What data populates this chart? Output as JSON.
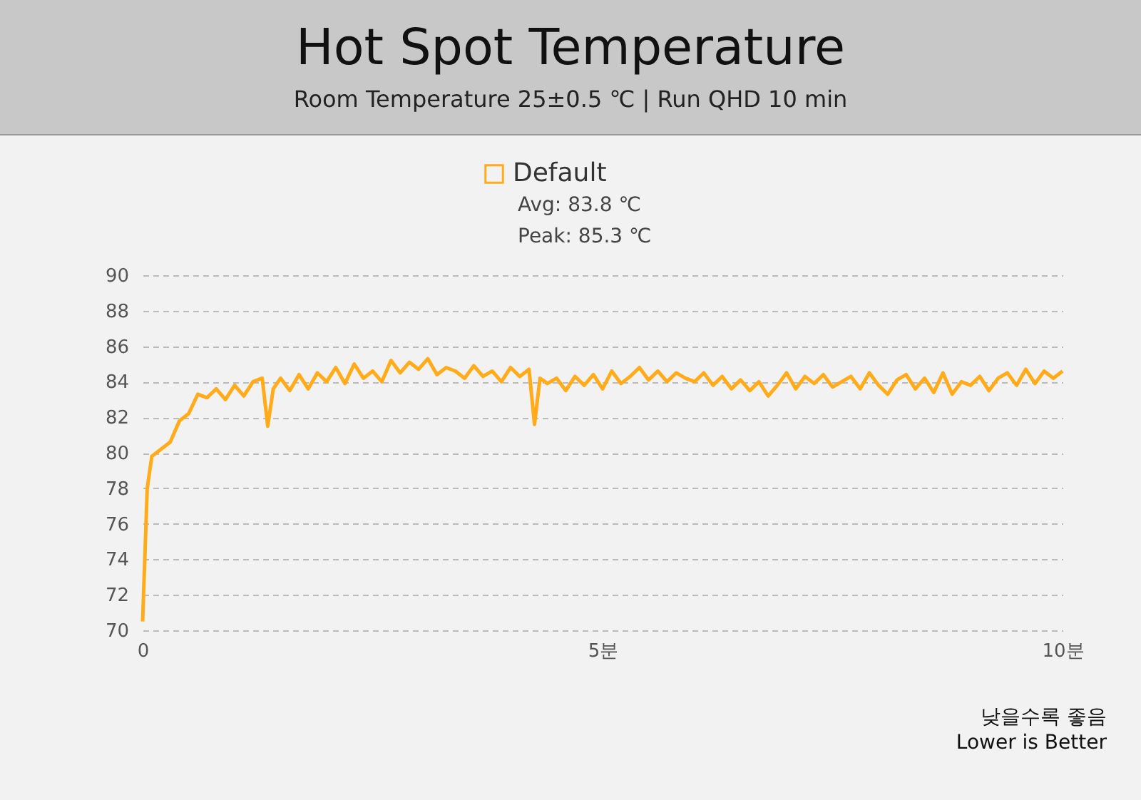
{
  "chart_data": {
    "type": "line",
    "title": "Hot Spot Temperature",
    "subtitle": "Room Temperature 25±0.5 ℃  |  Run QHD 10 min",
    "x": [
      0,
      0.05,
      0.1,
      0.2,
      0.3,
      0.4,
      0.5,
      0.6,
      0.7,
      0.8,
      0.9,
      1.0,
      1.1,
      1.2,
      1.3,
      1.36,
      1.42,
      1.5,
      1.6,
      1.7,
      1.8,
      1.9,
      2.0,
      2.1,
      2.2,
      2.3,
      2.4,
      2.5,
      2.6,
      2.7,
      2.8,
      2.9,
      3.0,
      3.1,
      3.2,
      3.3,
      3.4,
      3.5,
      3.6,
      3.7,
      3.8,
      3.9,
      4.0,
      4.1,
      4.2,
      4.26,
      4.32,
      4.4,
      4.5,
      4.6,
      4.7,
      4.8,
      4.9,
      5.0,
      5.1,
      5.2,
      5.3,
      5.4,
      5.5,
      5.6,
      5.7,
      5.8,
      5.9,
      6.0,
      6.1,
      6.2,
      6.3,
      6.4,
      6.5,
      6.6,
      6.7,
      6.8,
      6.9,
      7.0,
      7.1,
      7.2,
      7.3,
      7.4,
      7.5,
      7.6,
      7.7,
      7.8,
      7.9,
      8.0,
      8.1,
      8.2,
      8.3,
      8.4,
      8.5,
      8.6,
      8.7,
      8.8,
      8.9,
      9.0,
      9.1,
      9.2,
      9.3,
      9.4,
      9.5,
      9.6,
      9.7,
      9.8,
      9.9,
      10.0
    ],
    "series": [
      {
        "name": "Default",
        "color": "#ffab1a",
        "values": [
          70.5,
          78,
          79.8,
          80.2,
          80.6,
          81.8,
          82.2,
          83.3,
          83.1,
          83.6,
          83.0,
          83.8,
          83.2,
          84.0,
          84.2,
          81.5,
          83.6,
          84.2,
          83.5,
          84.4,
          83.6,
          84.5,
          84.0,
          84.8,
          83.9,
          85.0,
          84.2,
          84.6,
          84.0,
          85.2,
          84.5,
          85.1,
          84.7,
          85.3,
          84.4,
          84.8,
          84.6,
          84.2,
          84.9,
          84.3,
          84.6,
          84.0,
          84.8,
          84.3,
          84.7,
          81.6,
          84.2,
          83.9,
          84.2,
          83.5,
          84.3,
          83.8,
          84.4,
          83.6,
          84.6,
          83.9,
          84.3,
          84.8,
          84.1,
          84.6,
          84.0,
          84.5,
          84.2,
          84.0,
          84.5,
          83.8,
          84.3,
          83.6,
          84.1,
          83.5,
          84.0,
          83.2,
          83.8,
          84.5,
          83.6,
          84.3,
          83.9,
          84.4,
          83.7,
          84.0,
          84.3,
          83.6,
          84.5,
          83.8,
          83.3,
          84.1,
          84.4,
          83.6,
          84.2,
          83.4,
          84.5,
          83.3,
          84.0,
          83.8,
          84.3,
          83.5,
          84.2,
          84.5,
          83.8,
          84.7,
          83.9,
          84.6,
          84.2,
          84.6
        ]
      }
    ],
    "xlim": [
      0,
      10
    ],
    "xticks": [
      {
        "value": 0,
        "label": "0"
      },
      {
        "value": 5,
        "label": "5분"
      },
      {
        "value": 10,
        "label": "10분"
      }
    ],
    "ylim": [
      70,
      90
    ],
    "yticks": [
      70,
      72,
      74,
      76,
      78,
      80,
      82,
      84,
      86,
      88,
      90
    ],
    "grid": "y",
    "legend": "top",
    "line_style": "solid",
    "annotations": [
      "Avg: 83.8 ℃",
      "Peak: 85.3 ℃",
      "낮을수록 좋음",
      "Lower is Better"
    ]
  }
}
